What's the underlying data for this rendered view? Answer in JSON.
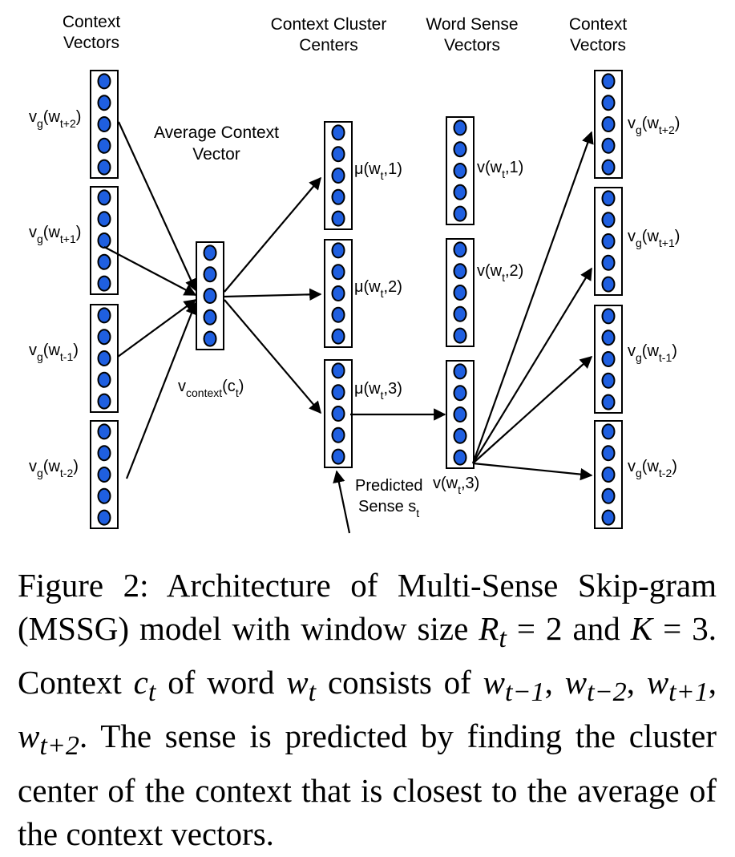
{
  "headers": {
    "context_left": [
      "Context",
      "Vectors"
    ],
    "cluster_centers": [
      "Context Cluster",
      "Centers"
    ],
    "word_sense": [
      "Word Sense",
      "Vectors"
    ],
    "context_right": [
      "Context",
      "Vectors"
    ],
    "average": [
      "Average Context",
      "Vector"
    ]
  },
  "left_labels": [
    {
      "base": "v",
      "sub": "g",
      "mid": "(w",
      "tsub": "t+2",
      "end": ")"
    },
    {
      "base": "v",
      "sub": "g",
      "mid": "(w",
      "tsub": "t+1",
      "end": ")"
    },
    {
      "base": "v",
      "sub": "g",
      "mid": "(w",
      "tsub": "t-1",
      "end": ")"
    },
    {
      "base": "v",
      "sub": "g",
      "mid": "(w",
      "tsub": "t-2",
      "end": ")"
    }
  ],
  "right_labels": [
    {
      "base": "v",
      "sub": "g",
      "mid": "(w",
      "tsub": "t+2",
      "end": ")"
    },
    {
      "base": "v",
      "sub": "g",
      "mid": "(w",
      "tsub": "t+1",
      "end": ")"
    },
    {
      "base": "v",
      "sub": "g",
      "mid": "(w",
      "tsub": "t-1",
      "end": ")"
    },
    {
      "base": "v",
      "sub": "g",
      "mid": "(w",
      "tsub": "t-2",
      "end": ")"
    }
  ],
  "context_label": {
    "base": "v",
    "sub": "context",
    "mid": "(c",
    "tsub": "t",
    "end": ")"
  },
  "mu_labels": [
    {
      "base": "μ(w",
      "tsub": "t",
      "end": ",1)"
    },
    {
      "base": "μ(w",
      "tsub": "t",
      "end": ",2)"
    },
    {
      "base": "μ(w",
      "tsub": "t",
      "end": ",3)"
    }
  ],
  "sense_labels": [
    {
      "base": "v(w",
      "tsub": "t",
      "end": ",1)"
    },
    {
      "base": "v(w",
      "tsub": "t",
      "end": ",2)"
    },
    {
      "base": "v(w",
      "tsub": "t",
      "end": ",3)"
    }
  ],
  "predicted": {
    "line1": "Predicted",
    "line2": "Sense s",
    "line2_sub": "t"
  },
  "caption": {
    "part1": "Figure 2: Architecture of Multi-Sense Skip-gram (MSSG) model with window size ",
    "R": "R",
    "R_sub": "t",
    "part2": " = 2 and ",
    "K": "K",
    "part3": " = 3. Context ",
    "c": "c",
    "c_sub": "t",
    "part4": " of word ",
    "w": "w",
    "w_sub": "t",
    "part5": " consists of ",
    "seq": [
      {
        "w": "w",
        "sub": "t−1"
      },
      {
        "w": "w",
        "sub": "t−2"
      },
      {
        "w": "w",
        "sub": "t+1"
      },
      {
        "w": "w",
        "sub": "t+2"
      }
    ],
    "part6": ". The sense is predicted by finding the cluster center of the context that is closest to the average of the context vectors."
  },
  "colors": {
    "node_fill": "#1f5fe0",
    "stroke": "#000000"
  }
}
